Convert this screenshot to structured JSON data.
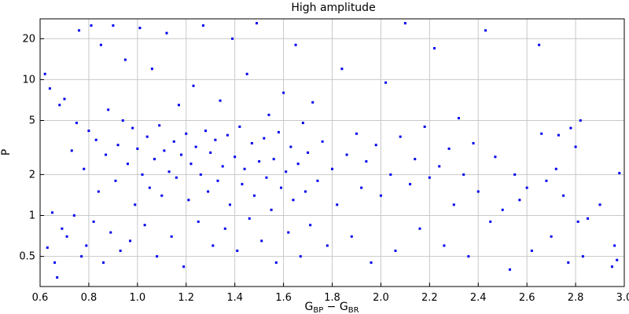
{
  "chart_data": {
    "type": "scatter",
    "title": "High amplitude",
    "xlabel": {
      "main": "G",
      "sub1": "BP",
      "minus": " − G",
      "sub2": "BR"
    },
    "ylabel": "P",
    "xlim": [
      0.6,
      3.0
    ],
    "ylim": [
      0.3,
      28
    ],
    "yscale": "log",
    "grid": true,
    "point_color": "#0000ee",
    "x_ticks": [
      0.6,
      0.8,
      1.0,
      1.2,
      1.4,
      1.6,
      1.8,
      2.0,
      2.2,
      2.4,
      2.6,
      2.8,
      3.0
    ],
    "x_tick_labels": [
      "0.6",
      "0.8",
      "1.0",
      "1.2",
      "1.4",
      "1.6",
      "1.8",
      "2.0",
      "2.2",
      "2.4",
      "2.6",
      "2.8",
      "3.0"
    ],
    "y_ticks": [
      0.5,
      1,
      2,
      5,
      10,
      20
    ],
    "y_tick_labels": [
      "0.5",
      "1",
      "2",
      "5",
      "10",
      "20"
    ],
    "series": [
      {
        "points": [
          [
            0.62,
            11.0
          ],
          [
            0.63,
            0.58
          ],
          [
            0.64,
            8.6
          ],
          [
            0.65,
            1.05
          ],
          [
            0.66,
            0.45
          ],
          [
            0.67,
            0.35
          ],
          [
            0.68,
            6.5
          ],
          [
            0.69,
            0.8
          ],
          [
            0.7,
            7.2
          ],
          [
            0.71,
            0.7
          ],
          [
            0.73,
            3.0
          ],
          [
            0.74,
            1.0
          ],
          [
            0.75,
            4.8
          ],
          [
            0.76,
            23.0
          ],
          [
            0.77,
            0.5
          ],
          [
            0.78,
            2.2
          ],
          [
            0.79,
            0.6
          ],
          [
            0.8,
            4.2
          ],
          [
            0.81,
            25.0
          ],
          [
            0.82,
            0.9
          ],
          [
            0.83,
            3.6
          ],
          [
            0.84,
            1.5
          ],
          [
            0.85,
            18.0
          ],
          [
            0.86,
            0.45
          ],
          [
            0.87,
            2.8
          ],
          [
            0.88,
            6.0
          ],
          [
            0.89,
            0.75
          ],
          [
            0.9,
            25.0
          ],
          [
            0.91,
            1.8
          ],
          [
            0.92,
            3.3
          ],
          [
            0.93,
            0.55
          ],
          [
            0.94,
            5.0
          ],
          [
            0.95,
            14.0
          ],
          [
            0.96,
            2.4
          ],
          [
            0.97,
            0.65
          ],
          [
            0.98,
            4.4
          ],
          [
            0.99,
            1.2
          ],
          [
            1.0,
            3.1
          ],
          [
            1.01,
            24.0
          ],
          [
            1.02,
            2.0
          ],
          [
            1.03,
            0.85
          ],
          [
            1.04,
            3.8
          ],
          [
            1.05,
            1.6
          ],
          [
            1.06,
            12.0
          ],
          [
            1.07,
            2.6
          ],
          [
            1.08,
            0.5
          ],
          [
            1.09,
            4.6
          ],
          [
            1.1,
            1.4
          ],
          [
            1.11,
            3.0
          ],
          [
            1.12,
            22.0
          ],
          [
            1.13,
            2.1
          ],
          [
            1.14,
            0.7
          ],
          [
            1.15,
            3.5
          ],
          [
            1.16,
            1.9
          ],
          [
            1.17,
            6.5
          ],
          [
            1.18,
            2.8
          ],
          [
            1.19,
            0.42
          ],
          [
            1.2,
            4.0
          ],
          [
            1.21,
            1.3
          ],
          [
            1.22,
            2.4
          ],
          [
            1.23,
            9.0
          ],
          [
            1.24,
            3.2
          ],
          [
            1.25,
            0.9
          ],
          [
            1.26,
            2.0
          ],
          [
            1.27,
            25.0
          ],
          [
            1.28,
            4.2
          ],
          [
            1.29,
            1.5
          ],
          [
            1.3,
            2.9
          ],
          [
            1.31,
            0.6
          ],
          [
            1.32,
            3.6
          ],
          [
            1.33,
            1.8
          ],
          [
            1.34,
            7.0
          ],
          [
            1.35,
            2.3
          ],
          [
            1.36,
            0.8
          ],
          [
            1.37,
            3.9
          ],
          [
            1.38,
            1.2
          ],
          [
            1.39,
            20.0
          ],
          [
            1.4,
            2.7
          ],
          [
            1.41,
            0.55
          ],
          [
            1.42,
            4.5
          ],
          [
            1.43,
            1.7
          ],
          [
            1.44,
            2.2
          ],
          [
            1.45,
            11.0
          ],
          [
            1.46,
            0.95
          ],
          [
            1.47,
            3.4
          ],
          [
            1.48,
            1.4
          ],
          [
            1.49,
            26.0
          ],
          [
            1.5,
            2.5
          ],
          [
            1.51,
            0.65
          ],
          [
            1.52,
            3.7
          ],
          [
            1.53,
            1.9
          ],
          [
            1.54,
            5.5
          ],
          [
            1.55,
            1.1
          ],
          [
            1.56,
            2.6
          ],
          [
            1.57,
            0.45
          ],
          [
            1.58,
            4.1
          ],
          [
            1.59,
            1.6
          ],
          [
            1.6,
            8.0
          ],
          [
            1.61,
            2.1
          ],
          [
            1.62,
            0.75
          ],
          [
            1.63,
            3.2
          ],
          [
            1.64,
            1.3
          ],
          [
            1.65,
            18.0
          ],
          [
            1.66,
            2.4
          ],
          [
            1.67,
            0.5
          ],
          [
            1.68,
            4.8
          ],
          [
            1.69,
            1.5
          ],
          [
            1.7,
            2.9
          ],
          [
            1.71,
            0.85
          ],
          [
            1.72,
            6.8
          ],
          [
            1.74,
            1.8
          ],
          [
            1.76,
            3.5
          ],
          [
            1.78,
            0.6
          ],
          [
            1.8,
            2.2
          ],
          [
            1.82,
            1.2
          ],
          [
            1.84,
            12.0
          ],
          [
            1.86,
            2.8
          ],
          [
            1.88,
            0.7
          ],
          [
            1.9,
            4.0
          ],
          [
            1.92,
            1.6
          ],
          [
            1.94,
            2.5
          ],
          [
            1.96,
            0.45
          ],
          [
            1.98,
            3.3
          ],
          [
            2.0,
            1.4
          ],
          [
            2.02,
            9.5
          ],
          [
            2.04,
            2.0
          ],
          [
            2.06,
            0.55
          ],
          [
            2.08,
            3.8
          ],
          [
            2.1,
            26.0
          ],
          [
            2.12,
            1.7
          ],
          [
            2.14,
            2.6
          ],
          [
            2.16,
            0.8
          ],
          [
            2.18,
            4.5
          ],
          [
            2.2,
            1.9
          ],
          [
            2.22,
            17.0
          ],
          [
            2.24,
            2.3
          ],
          [
            2.26,
            0.6
          ],
          [
            2.28,
            3.1
          ],
          [
            2.3,
            1.2
          ],
          [
            2.32,
            5.2
          ],
          [
            2.34,
            2.0
          ],
          [
            2.36,
            0.5
          ],
          [
            2.38,
            3.4
          ],
          [
            2.4,
            1.5
          ],
          [
            2.43,
            23.0
          ],
          [
            2.45,
            0.9
          ],
          [
            2.47,
            2.7
          ],
          [
            2.5,
            1.1
          ],
          [
            2.53,
            0.4
          ],
          [
            2.55,
            2.0
          ],
          [
            2.57,
            1.3
          ],
          [
            2.6,
            1.6
          ],
          [
            2.62,
            0.55
          ],
          [
            2.65,
            18.0
          ],
          [
            2.66,
            4.0
          ],
          [
            2.68,
            1.8
          ],
          [
            2.7,
            0.7
          ],
          [
            2.72,
            2.2
          ],
          [
            2.73,
            3.9
          ],
          [
            2.75,
            1.4
          ],
          [
            2.77,
            0.45
          ],
          [
            2.78,
            4.4
          ],
          [
            2.8,
            3.2
          ],
          [
            2.81,
            0.9
          ],
          [
            2.82,
            5.0
          ],
          [
            2.83,
            0.5
          ],
          [
            2.85,
            0.95
          ],
          [
            2.9,
            1.2
          ],
          [
            2.95,
            0.42
          ],
          [
            2.96,
            0.6
          ],
          [
            2.97,
            0.47
          ],
          [
            2.98,
            2.05
          ]
        ]
      }
    ]
  }
}
